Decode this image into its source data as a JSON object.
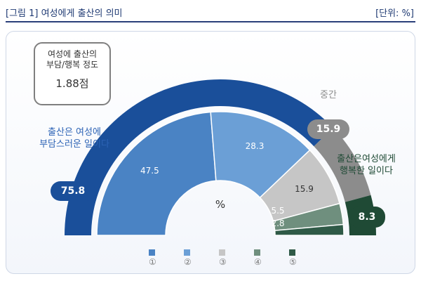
{
  "header": {
    "title": "[그림 1] 여성에게 출산의 의미",
    "unit": "[단위: %]"
  },
  "chart_data": {
    "type": "pie",
    "title": "[그림 1] 여성에게 출산의 의미",
    "unit": "%",
    "center_label": "%",
    "series": [
      {
        "name": "①",
        "value": 47.5,
        "color": "#4a83c4"
      },
      {
        "name": "②",
        "value": 28.3,
        "color": "#6b9fd6"
      },
      {
        "name": "③",
        "value": 15.9,
        "color": "#c6c6c6"
      },
      {
        "name": "④",
        "value": 5.5,
        "color": "#6f8f7e"
      },
      {
        "name": "⑤",
        "value": 2.8,
        "color": "#2f5a47"
      }
    ],
    "groups": [
      {
        "label": "출산은 여성에\n부담스러운 일이다",
        "value": "75.8",
        "color": "#1a4f9a"
      },
      {
        "label": "중간",
        "value": "15.9",
        "color": "#8c8c8c"
      },
      {
        "label": "출산은여성에게\n행복한 일이다",
        "value": "8.3",
        "color": "#1f4a35"
      }
    ],
    "summary": {
      "label": "여성에 출산의\n부담/행복 정도",
      "value": "1.88점"
    }
  }
}
